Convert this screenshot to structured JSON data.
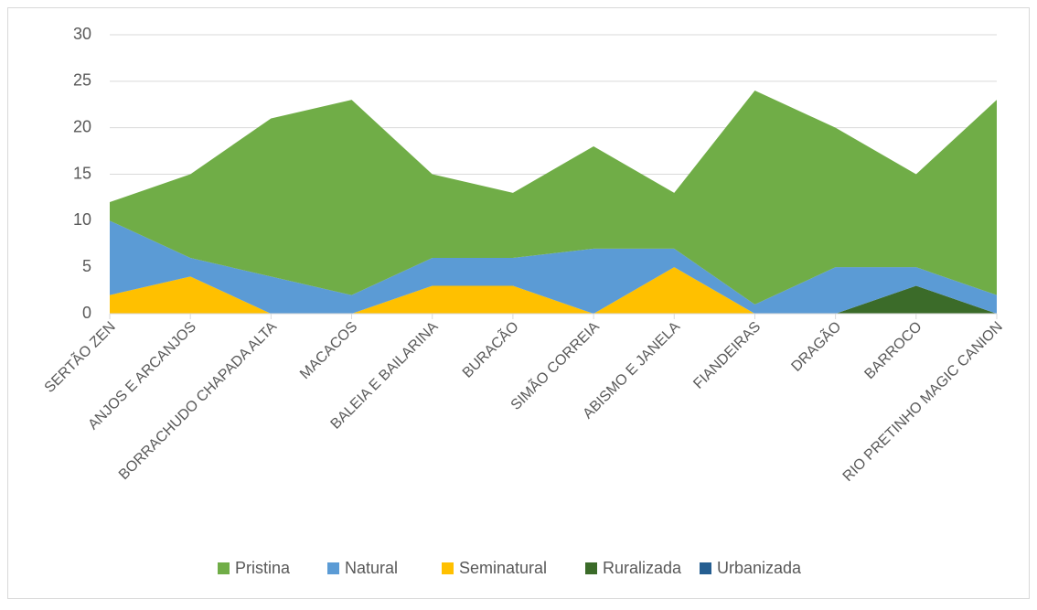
{
  "chart_data": {
    "type": "stacked-area",
    "categories": [
      "SERTÃO ZEN",
      "ANJOS E ARCANJOS",
      "BORRACHUDO CHAPADA ALTA",
      "MACACOS",
      "BALEIA E BAILARINA",
      "BURACÃO",
      "SIMÃO CORREIA",
      "ABISMO E JANELA",
      "FIANDEIRAS",
      "DRAGÃO",
      "BARROCO",
      "RIO PRETINHO MAGIC CANION"
    ],
    "series": [
      {
        "name": "Pristina",
        "color": "#70ad47",
        "values": [
          2,
          9,
          17,
          21,
          9,
          7,
          11,
          6,
          23,
          15,
          10,
          21
        ]
      },
      {
        "name": "Natural",
        "color": "#5b9bd5",
        "values": [
          8,
          2,
          4,
          2,
          3,
          3,
          7,
          2,
          1,
          5,
          2,
          2
        ]
      },
      {
        "name": "Seminatural",
        "color": "#ffc000",
        "values": [
          2,
          4,
          0,
          0,
          3,
          3,
          0,
          5,
          0,
          0,
          0,
          0
        ]
      },
      {
        "name": "Ruralizada",
        "color": "#3b6b29",
        "values": [
          0,
          0,
          0,
          0,
          0,
          0,
          0,
          0,
          0,
          0,
          3,
          0
        ]
      },
      {
        "name": "Urbanizada",
        "color": "#255e91",
        "values": [
          0,
          0,
          0,
          0,
          0,
          0,
          0,
          0,
          0,
          0,
          0,
          0
        ]
      }
    ],
    "ylim": [
      0,
      30
    ],
    "yticks": [
      0,
      5,
      10,
      15,
      20,
      25,
      30
    ],
    "grid": true,
    "legend": "bottom"
  }
}
